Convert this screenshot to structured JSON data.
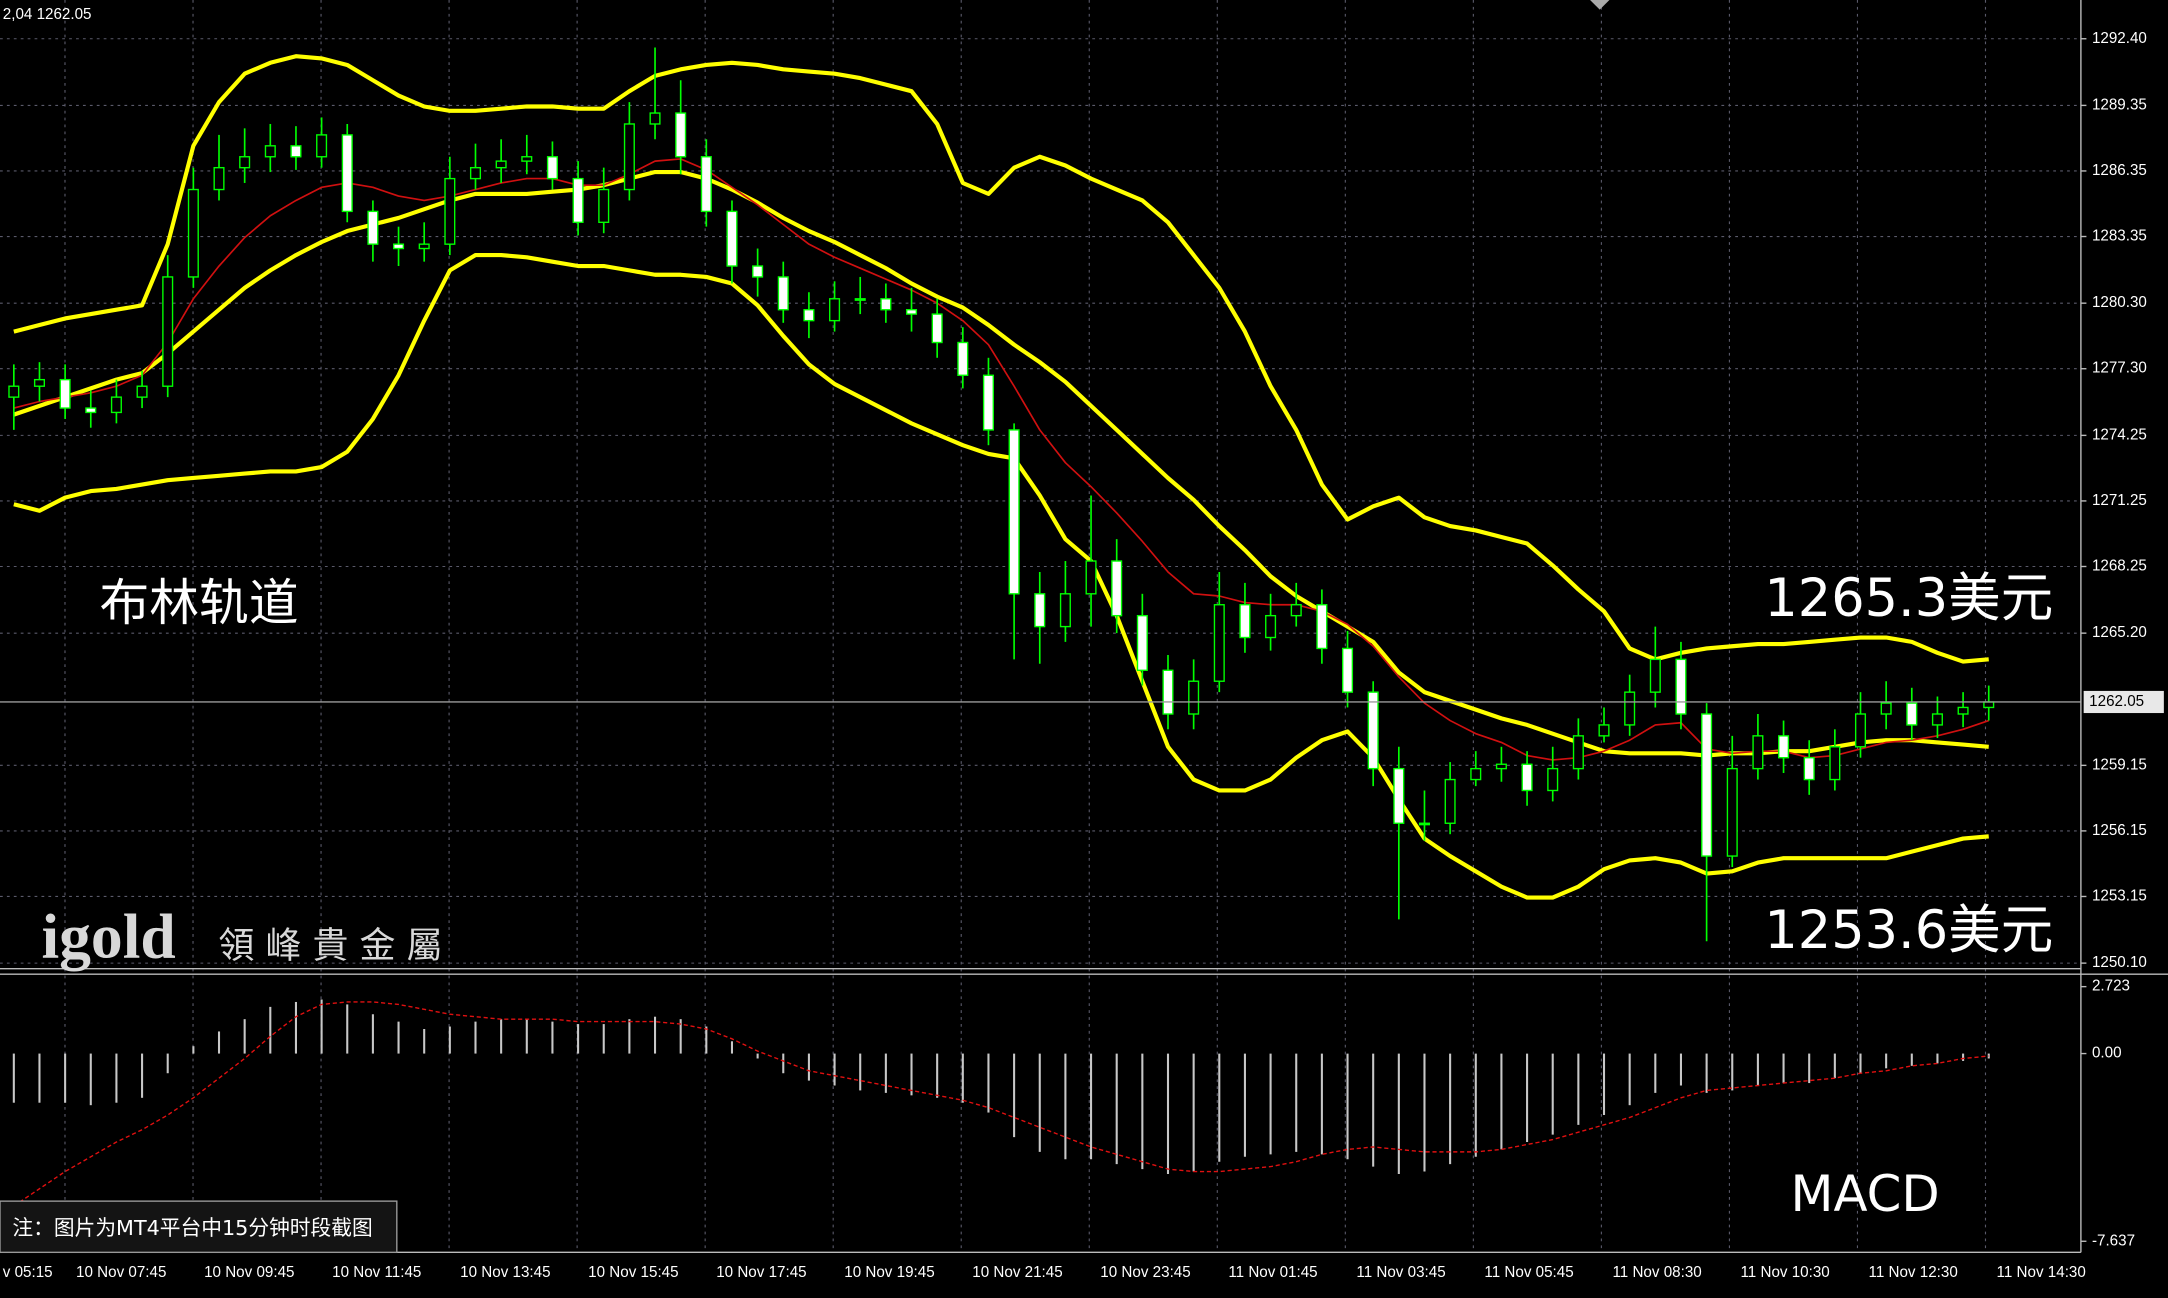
{
  "chart_data": [
    {
      "type": "candlestick",
      "header": "2,04 1262.05",
      "ylim": [
        1250.1,
        1292.4
      ],
      "yticks": [
        {
          "value": 1292.4,
          "label": "1292.40"
        },
        1289.35,
        1286.35,
        1283.35,
        {
          "value": 1280.3,
          "label": "1280.30"
        },
        {
          "value": 1277.3,
          "label": "1277.30"
        },
        1274.25,
        1271.25,
        1268.25,
        {
          "value": 1265.2,
          "label": "1265.20"
        },
        1259.15,
        1256.15,
        1253.15,
        {
          "value": 1250.1,
          "label": "1250.10"
        }
      ],
      "current_price": 1262.05,
      "candle_color": "#00ff00",
      "grid": true,
      "annotations": [
        "布林轨道",
        "1265.3美元",
        "1253.6美元"
      ],
      "open": [
        1276,
        1276.5,
        1276.8,
        1275.5,
        1275.3,
        1276,
        1276.5,
        1281.5,
        1285.5,
        1286.5,
        1287,
        1287.5,
        1287,
        1288,
        1284.5,
        1283,
        1282.8,
        1283,
        1286,
        1286.5,
        1286.8,
        1287,
        1286,
        1284,
        1285.5,
        1288.5,
        1289,
        1287,
        1284.5,
        1282,
        1281.5,
        1280,
        1279.5,
        1280.5,
        1280.5,
        1280,
        1279.8,
        1278.5,
        1277,
        1274.5,
        1267,
        1265.5,
        1267,
        1268.5,
        1266,
        1263.5,
        1261.5,
        1263,
        1266.5,
        1265,
        1266,
        1266.5,
        1264.5,
        1262.5,
        1259,
        1256.5,
        1256.5,
        1258.5,
        1259,
        1259.2,
        1258,
        1259,
        1260.5,
        1261,
        1262.5,
        1264,
        1261.5,
        1255,
        1259,
        1260.5,
        1259.5,
        1258.5,
        1260,
        1261.5,
        1262,
        1261,
        1261.5,
        1261.8
      ],
      "high": [
        1277.5,
        1277.6,
        1277.5,
        1276.3,
        1276.8,
        1277.2,
        1282.5,
        1286.5,
        1288,
        1288.3,
        1288.5,
        1288.4,
        1288.8,
        1288.5,
        1285,
        1283.8,
        1284,
        1287,
        1287.6,
        1287.8,
        1288,
        1287.7,
        1286.8,
        1286.5,
        1289.5,
        1292,
        1290.5,
        1287.8,
        1285,
        1282.8,
        1282.2,
        1280.8,
        1281.3,
        1281.5,
        1281.2,
        1281,
        1280.5,
        1279.2,
        1277.8,
        1274.8,
        1268,
        1268.5,
        1271.5,
        1269.5,
        1267,
        1264.2,
        1264,
        1268,
        1267.5,
        1267,
        1267.5,
        1267.2,
        1265.3,
        1263,
        1260,
        1258,
        1259.3,
        1259.8,
        1260,
        1259.8,
        1260,
        1261.3,
        1261.8,
        1263.3,
        1265.5,
        1264.8,
        1262,
        1260.5,
        1261.5,
        1261.2,
        1260.3,
        1260.8,
        1262.5,
        1263,
        1262.7,
        1262.3,
        1262.5,
        1262.8
      ],
      "low": [
        1274.5,
        1275.8,
        1275,
        1274.6,
        1274.8,
        1275.5,
        1276,
        1281,
        1285,
        1285.8,
        1286.3,
        1286.4,
        1286.5,
        1284,
        1282.2,
        1282,
        1282.2,
        1282.5,
        1285.5,
        1285.8,
        1286.2,
        1285.5,
        1283.4,
        1283.5,
        1285,
        1287.8,
        1286.2,
        1283.8,
        1281.2,
        1280.6,
        1279.4,
        1278.7,
        1279,
        1279.8,
        1279.4,
        1279,
        1277.8,
        1276.4,
        1273.8,
        1264,
        1263.8,
        1264.8,
        1265.5,
        1265.2,
        1262.8,
        1260.8,
        1260.8,
        1262.5,
        1264.3,
        1264.4,
        1265.5,
        1263.8,
        1261.8,
        1258.2,
        1252.1,
        1255.7,
        1256,
        1258.2,
        1258.4,
        1257.3,
        1257.5,
        1258.5,
        1260.2,
        1260.5,
        1261.8,
        1260.8,
        1251.1,
        1254.5,
        1258.5,
        1258.8,
        1257.8,
        1258,
        1259.5,
        1260.8,
        1260.3,
        1260.4,
        1260.9,
        1261.2
      ],
      "close": [
        1276.5,
        1276.8,
        1275.5,
        1275.3,
        1276,
        1276.5,
        1281.5,
        1285.5,
        1286.5,
        1287,
        1287.5,
        1287,
        1288,
        1284.5,
        1283,
        1282.8,
        1283,
        1286,
        1286.5,
        1286.8,
        1287,
        1286,
        1284,
        1285.5,
        1288.5,
        1289,
        1287,
        1284.5,
        1282,
        1281.5,
        1280,
        1279.5,
        1280.5,
        1280.5,
        1280,
        1279.8,
        1278.5,
        1277,
        1274.5,
        1267,
        1265.5,
        1267,
        1268.5,
        1266,
        1263.5,
        1261.5,
        1263,
        1266.5,
        1265,
        1266,
        1266.5,
        1264.5,
        1262.5,
        1259,
        1256.5,
        1256.5,
        1258.5,
        1259,
        1259.2,
        1258,
        1259,
        1260.5,
        1261,
        1262.5,
        1264,
        1261.5,
        1255,
        1259,
        1260.5,
        1259.5,
        1258.5,
        1260,
        1261.5,
        1262,
        1261,
        1261.5,
        1261.8,
        1262.05
      ],
      "overlays": [
        {
          "color": "#ffff00",
          "values": [
            1279,
            1279.3,
            1279.6,
            1279.8,
            1280,
            1280.2,
            1283,
            1287.5,
            1289.5,
            1290.8,
            1291.3,
            1291.6,
            1291.5,
            1291.2,
            1290.5,
            1289.8,
            1289.3,
            1289.1,
            1289.1,
            1289.2,
            1289.3,
            1289.3,
            1289.2,
            1289.2,
            1290,
            1290.7,
            1291,
            1291.2,
            1291.3,
            1291.2,
            1291,
            1290.9,
            1290.8,
            1290.6,
            1290.3,
            1290,
            1288.5,
            1285.8,
            1285.3,
            1286.5,
            1287,
            1286.6,
            1286,
            1285.5,
            1285,
            1284,
            1282.5,
            1281,
            1279,
            1276.5,
            1274.5,
            1272,
            1270.4,
            1271,
            1271.4,
            1270.5,
            1270.1,
            1269.9,
            1269.6,
            1269.3,
            1268.3,
            1267.2,
            1266.2,
            1264.5,
            1264,
            1264.3,
            1264.5,
            1264.6,
            1264.7,
            1264.7,
            1264.8,
            1264.9,
            1265,
            1265,
            1264.8,
            1264.3,
            1263.9,
            1264
          ]
        },
        {
          "color": "#ffff00",
          "values": [
            1275.2,
            1275.6,
            1276,
            1276.4,
            1276.8,
            1277.1,
            1278,
            1279,
            1280,
            1281,
            1281.8,
            1282.5,
            1283.1,
            1283.6,
            1283.9,
            1284.2,
            1284.6,
            1285,
            1285.3,
            1285.3,
            1285.3,
            1285.4,
            1285.5,
            1285.7,
            1286,
            1286.3,
            1286.3,
            1286,
            1285.5,
            1284.9,
            1284.2,
            1283.6,
            1283.1,
            1282.5,
            1281.9,
            1281.2,
            1280.6,
            1280.1,
            1279.3,
            1278.4,
            1277.6,
            1276.7,
            1275.6,
            1274.5,
            1273.4,
            1272.3,
            1271.3,
            1270.1,
            1269,
            1267.8,
            1266.9,
            1266.2,
            1265.5,
            1264.8,
            1263.4,
            1262.5,
            1262.1,
            1261.7,
            1261.3,
            1261,
            1260.6,
            1260.2,
            1259.8,
            1259.7,
            1259.7,
            1259.7,
            1259.6,
            1259.7,
            1259.7,
            1259.8,
            1259.8,
            1260,
            1260.2,
            1260.3,
            1260.3,
            1260.2,
            1260.1,
            1260
          ]
        },
        {
          "color": "#ffff00",
          "values": [
            1271.1,
            1270.8,
            1271.4,
            1271.7,
            1271.8,
            1272,
            1272.2,
            1272.3,
            1272.4,
            1272.5,
            1272.6,
            1272.6,
            1272.8,
            1273.5,
            1275,
            1277,
            1279.5,
            1281.8,
            1282.5,
            1282.5,
            1282.4,
            1282.2,
            1282,
            1282,
            1281.8,
            1281.6,
            1281.6,
            1281.5,
            1281.2,
            1280.2,
            1278.8,
            1277.5,
            1276.6,
            1276,
            1275.4,
            1274.8,
            1274.3,
            1273.8,
            1273.4,
            1273.2,
            1271.5,
            1269.5,
            1268.5,
            1266,
            1263,
            1260,
            1258.5,
            1258,
            1258,
            1258.5,
            1259.5,
            1260.3,
            1260.7,
            1259.5,
            1257.6,
            1255.8,
            1255,
            1254.3,
            1253.6,
            1253.1,
            1253.1,
            1253.6,
            1254.4,
            1254.8,
            1254.9,
            1254.7,
            1254.2,
            1254.3,
            1254.7,
            1254.9,
            1254.9,
            1254.9,
            1254.9,
            1254.9,
            1255.2,
            1255.5,
            1255.8,
            1255.9
          ]
        },
        {
          "color": "#d01010",
          "values": [
            1275.5,
            1275.8,
            1276,
            1276.2,
            1276.5,
            1277,
            1278.5,
            1280.5,
            1282,
            1283.3,
            1284.3,
            1285,
            1285.6,
            1285.8,
            1285.6,
            1285.2,
            1285,
            1285.2,
            1285.5,
            1285.8,
            1286,
            1286,
            1285.7,
            1285.7,
            1286.2,
            1286.8,
            1286.9,
            1286.4,
            1285.6,
            1284.8,
            1283.9,
            1283,
            1282.4,
            1281.9,
            1281.4,
            1280.9,
            1280.3,
            1279.5,
            1278.4,
            1276.5,
            1274.5,
            1273,
            1271.9,
            1270.7,
            1269.4,
            1268,
            1267,
            1266.9,
            1266.6,
            1266.5,
            1266.5,
            1266.2,
            1265.6,
            1264.6,
            1263.2,
            1262,
            1261.2,
            1260.6,
            1260.2,
            1259.6,
            1259.4,
            1259.5,
            1259.8,
            1260.3,
            1261,
            1261.1,
            1259.9,
            1259.7,
            1259.8,
            1259.8,
            1259.5,
            1259.6,
            1259.9,
            1260.2,
            1260.3,
            1260.5,
            1260.8,
            1261.2
          ]
        }
      ]
    },
    {
      "type": "macd",
      "ylim": [
        -7.637,
        2.723
      ],
      "yticks": [
        2.723,
        {
          "value": 0,
          "label": "0.00"
        },
        -7.637
      ],
      "annotations": [
        "MACD"
      ],
      "histogram_color": "#c8c8c8",
      "signal_color": "#e01010",
      "histogram": [
        -2,
        -2,
        -2,
        -2.1,
        -2,
        -1.8,
        -0.8,
        0.3,
        0.9,
        1.4,
        1.9,
        2.1,
        2.2,
        2,
        1.6,
        1.3,
        1,
        1.1,
        1.3,
        1.4,
        1.4,
        1.3,
        1.2,
        1.2,
        1.4,
        1.5,
        1.4,
        1.1,
        0.5,
        -0.2,
        -0.8,
        -1.1,
        -1.3,
        -1.5,
        -1.6,
        -1.7,
        -1.8,
        -2,
        -2.4,
        -3.4,
        -4,
        -4.3,
        -4.3,
        -4.5,
        -4.7,
        -4.9,
        -4.8,
        -4.4,
        -4.2,
        -4.1,
        -4,
        -4.1,
        -4.3,
        -4.6,
        -4.9,
        -4.8,
        -4.5,
        -4.2,
        -3.9,
        -3.6,
        -3.3,
        -2.9,
        -2.5,
        -2.1,
        -1.6,
        -1.3,
        -1.6,
        -1.5,
        -1.3,
        -1.2,
        -1.2,
        -1,
        -0.8,
        -0.6,
        -0.5,
        -0.4,
        -0.3,
        -0.2
      ],
      "signal": [
        -6.2,
        -5.5,
        -4.8,
        -4.2,
        -3.6,
        -3.1,
        -2.5,
        -1.8,
        -1,
        -0.2,
        0.7,
        1.5,
        2,
        2.1,
        2.1,
        2,
        1.8,
        1.6,
        1.5,
        1.4,
        1.4,
        1.4,
        1.3,
        1.3,
        1.3,
        1.3,
        1.2,
        1,
        0.6,
        0.1,
        -0.3,
        -0.7,
        -0.9,
        -1.1,
        -1.3,
        -1.5,
        -1.7,
        -1.9,
        -2.2,
        -2.6,
        -3,
        -3.4,
        -3.8,
        -4.1,
        -4.4,
        -4.7,
        -4.8,
        -4.8,
        -4.7,
        -4.6,
        -4.4,
        -4.1,
        -3.9,
        -3.8,
        -3.9,
        -4,
        -4,
        -4,
        -3.9,
        -3.7,
        -3.5,
        -3.2,
        -2.9,
        -2.6,
        -2.2,
        -1.8,
        -1.5,
        -1.4,
        -1.3,
        -1.2,
        -1.1,
        -1,
        -0.8,
        -0.7,
        -0.5,
        -0.4,
        -0.2,
        -0.1
      ],
      "time_labels": [
        "v 05:15",
        "10 Nov 07:45",
        "10 Nov 09:45",
        "10 Nov 11:45",
        "10 Nov 13:45",
        "10 Nov 15:45",
        "10 Nov 17:45",
        "10 Nov 19:45",
        "10 Nov 21:45",
        "10 Nov 23:45",
        "11 Nov 01:45",
        "11 Nov 03:45",
        "11 Nov 05:45",
        "11 Nov 08:30",
        "11 Nov 10:30",
        "11 Nov 12:30",
        "11 Nov 14:30"
      ]
    }
  ],
  "note": "注：图片为MT4平台中15分钟时段截图",
  "logo": {
    "brand": "igold",
    "name": "領峰貴金屬"
  }
}
